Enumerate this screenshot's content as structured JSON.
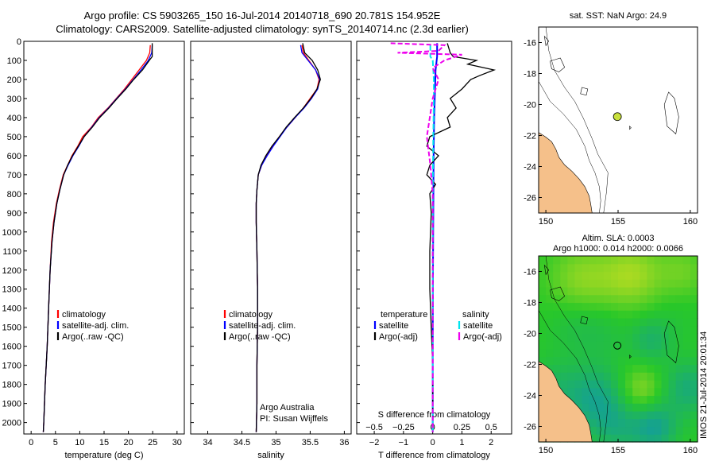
{
  "header": {
    "line1": "Argo profile: CS 5903265_150 16-Jul-2014 20140718_690 20.781S 154.952E",
    "line2": "Climatology: CARS2009. Satellite-adjusted climatology: synTS_20140714.nc (2.3d earlier)"
  },
  "colors": {
    "climatology": "#ff0000",
    "satellite": "#0000ff",
    "argo": "#000000",
    "sal_satellite": "#00e5ee",
    "sal_argo": "#ee00ee",
    "land": "#f5c08a",
    "float_marker": "#c8e03c"
  },
  "depth_axis": {
    "ticks": [
      0,
      100,
      200,
      300,
      400,
      500,
      600,
      700,
      800,
      900,
      1000,
      1100,
      1200,
      1300,
      1400,
      1500,
      1600,
      1700,
      1800,
      1900,
      2000
    ],
    "range": [
      0,
      2060
    ]
  },
  "chart_data": [
    {
      "type": "line",
      "name": "temperature",
      "xlabel": "temperature (deg C)",
      "xlim": [
        -1.5,
        31.5
      ],
      "xticks": [
        0,
        5,
        10,
        15,
        20,
        25,
        30
      ],
      "ylim": [
        2060,
        0
      ],
      "legend": [
        "climatology",
        "satellite-adj. clim.",
        "Argo(..raw -QC)"
      ],
      "series": [
        {
          "name": "climatology",
          "points": [
            [
              24.5,
              20
            ],
            [
              24.4,
              60
            ],
            [
              23.7,
              100
            ],
            [
              22.2,
              150
            ],
            [
              20.7,
              200
            ],
            [
              19.2,
              250
            ],
            [
              17.5,
              300
            ],
            [
              15.8,
              350
            ],
            [
              13.8,
              400
            ],
            [
              12.4,
              450
            ],
            [
              10.6,
              500
            ],
            [
              9.6,
              550
            ],
            [
              8.4,
              600
            ],
            [
              7.5,
              650
            ],
            [
              6.6,
              700
            ],
            [
              5.8,
              780
            ],
            [
              5.2,
              850
            ],
            [
              4.6,
              950
            ],
            [
              4.2,
              1050
            ],
            [
              3.9,
              1200
            ],
            [
              3.6,
              1400
            ],
            [
              3.3,
              1600
            ],
            [
              2.9,
              1800
            ],
            [
              2.6,
              2000
            ],
            [
              2.5,
              2050
            ]
          ]
        },
        {
          "name": "satellite-adj. clim.",
          "points": [
            [
              24.9,
              20
            ],
            [
              24.8,
              60
            ],
            [
              24.1,
              100
            ],
            [
              22.6,
              150
            ],
            [
              21.0,
              200
            ],
            [
              19.4,
              250
            ],
            [
              17.6,
              300
            ],
            [
              15.9,
              350
            ],
            [
              14.0,
              400
            ],
            [
              12.5,
              450
            ],
            [
              10.9,
              500
            ],
            [
              9.8,
              550
            ],
            [
              8.6,
              600
            ],
            [
              7.6,
              650
            ],
            [
              6.7,
              700
            ],
            [
              5.9,
              780
            ],
            [
              5.3,
              850
            ],
            [
              4.7,
              950
            ],
            [
              4.3,
              1050
            ],
            [
              3.9,
              1200
            ],
            [
              3.6,
              1400
            ],
            [
              3.3,
              1600
            ],
            [
              2.9,
              1800
            ],
            [
              2.6,
              2000
            ],
            [
              2.5,
              2050
            ]
          ]
        },
        {
          "name": "Argo(..raw -QC)",
          "points": [
            [
              24.9,
              10
            ],
            [
              24.9,
              80
            ],
            [
              24.3,
              100
            ],
            [
              22.9,
              150
            ],
            [
              21.1,
              200
            ],
            [
              19.5,
              250
            ],
            [
              17.7,
              300
            ],
            [
              16.0,
              350
            ],
            [
              14.1,
              400
            ],
            [
              12.6,
              450
            ],
            [
              10.9,
              500
            ],
            [
              9.7,
              550
            ],
            [
              8.5,
              600
            ],
            [
              7.5,
              650
            ],
            [
              6.7,
              700
            ],
            [
              5.9,
              780
            ],
            [
              5.3,
              850
            ],
            [
              4.7,
              950
            ],
            [
              4.3,
              1050
            ],
            [
              3.9,
              1200
            ],
            [
              3.6,
              1400
            ],
            [
              3.3,
              1600
            ],
            [
              2.9,
              1800
            ],
            [
              2.6,
              2000
            ],
            [
              2.5,
              2050
            ]
          ]
        }
      ]
    },
    {
      "type": "line",
      "name": "salinity",
      "xlabel": "salinity",
      "xlim": [
        33.75,
        36.1
      ],
      "xticks": [
        34,
        34.5,
        35,
        35.5,
        36
      ],
      "ylim": [
        2060,
        0
      ],
      "legend": [
        "climatology",
        "satellite-adj. clim.",
        "Argo(..raw -QC)"
      ],
      "annotation": [
        "Argo Australia",
        "PI: Susan Wijffels"
      ],
      "series": [
        {
          "name": "climatology",
          "points": [
            [
              35.38,
              20
            ],
            [
              35.4,
              60
            ],
            [
              35.48,
              100
            ],
            [
              35.58,
              150
            ],
            [
              35.63,
              200
            ],
            [
              35.6,
              250
            ],
            [
              35.5,
              300
            ],
            [
              35.4,
              350
            ],
            [
              35.28,
              400
            ],
            [
              35.16,
              450
            ],
            [
              35.05,
              500
            ],
            [
              34.95,
              550
            ],
            [
              34.86,
              600
            ],
            [
              34.79,
              650
            ],
            [
              34.74,
              700
            ],
            [
              34.72,
              780
            ],
            [
              34.71,
              850
            ],
            [
              34.71,
              950
            ],
            [
              34.72,
              1100
            ],
            [
              34.73,
              1300
            ],
            [
              34.73,
              1500
            ],
            [
              34.72,
              1700
            ],
            [
              34.72,
              1900
            ],
            [
              34.71,
              2050
            ]
          ]
        },
        {
          "name": "satellite-adj. clim.",
          "points": [
            [
              35.36,
              20
            ],
            [
              35.38,
              60
            ],
            [
              35.47,
              100
            ],
            [
              35.58,
              150
            ],
            [
              35.64,
              200
            ],
            [
              35.61,
              250
            ],
            [
              35.52,
              300
            ],
            [
              35.41,
              350
            ],
            [
              35.28,
              400
            ],
            [
              35.16,
              450
            ],
            [
              35.06,
              500
            ],
            [
              34.96,
              550
            ],
            [
              34.87,
              600
            ],
            [
              34.79,
              650
            ],
            [
              34.74,
              700
            ],
            [
              34.72,
              780
            ],
            [
              34.71,
              850
            ],
            [
              34.71,
              950
            ],
            [
              34.72,
              1100
            ],
            [
              34.73,
              1300
            ],
            [
              34.73,
              1500
            ],
            [
              34.72,
              1700
            ],
            [
              34.72,
              1900
            ],
            [
              34.71,
              2050
            ]
          ]
        },
        {
          "name": "Argo(..raw -QC)",
          "points": [
            [
              35.39,
              10
            ],
            [
              35.42,
              60
            ],
            [
              35.53,
              100
            ],
            [
              35.61,
              150
            ],
            [
              35.65,
              200
            ],
            [
              35.6,
              250
            ],
            [
              35.51,
              300
            ],
            [
              35.4,
              350
            ],
            [
              35.27,
              400
            ],
            [
              35.15,
              450
            ],
            [
              35.05,
              500
            ],
            [
              34.94,
              550
            ],
            [
              34.85,
              600
            ],
            [
              34.78,
              650
            ],
            [
              34.74,
              700
            ],
            [
              34.72,
              780
            ],
            [
              34.71,
              850
            ],
            [
              34.71,
              950
            ],
            [
              34.72,
              1100
            ],
            [
              34.73,
              1300
            ],
            [
              34.73,
              1500
            ],
            [
              34.72,
              1700
            ],
            [
              34.72,
              1900
            ],
            [
              34.71,
              2050
            ]
          ]
        }
      ]
    },
    {
      "type": "line",
      "name": "difference",
      "xlabel_top": "S difference from climatology",
      "xlabel": "T difference from climatology",
      "xlim": [
        -2.6,
        2.7
      ],
      "xticks": [
        -2,
        -1,
        0,
        1,
        2
      ],
      "xtick_labels": [
        "−2",
        "−1",
        "0",
        "1",
        "2"
      ],
      "sticks": [
        -0.5,
        -0.25,
        0,
        0.25,
        0.5
      ],
      "stick_labels": [
        "−0.5",
        "−0.25",
        "0",
        "0.25",
        "0.5"
      ],
      "s_scale": 4,
      "ylim": [
        2060,
        0
      ],
      "legend_left_title": "temperature",
      "legend_right_title": "salinity",
      "legend_left": [
        "satellite",
        "Argo(-adj)"
      ],
      "legend_right": [
        "satellite",
        "Argo(-adj)"
      ],
      "series": [
        {
          "name": "T satellite",
          "var": "T",
          "points": [
            [
              0.15,
              10
            ],
            [
              0.15,
              80
            ],
            [
              0.1,
              150
            ],
            [
              0.08,
              250
            ],
            [
              0.05,
              400
            ],
            [
              0.03,
              600
            ],
            [
              0.02,
              900
            ],
            [
              0.01,
              1200
            ],
            [
              0.0,
              1600
            ],
            [
              0.0,
              2050
            ]
          ]
        },
        {
          "name": "T Argo(-adj)",
          "var": "T",
          "points": [
            [
              0.5,
              10
            ],
            [
              0.6,
              60
            ],
            [
              0.7,
              80
            ],
            [
              1.5,
              100
            ],
            [
              1.2,
              120
            ],
            [
              2.1,
              150
            ],
            [
              1.6,
              180
            ],
            [
              1.3,
              200
            ],
            [
              1.0,
              250
            ],
            [
              0.6,
              300
            ],
            [
              0.8,
              350
            ],
            [
              0.5,
              400
            ],
            [
              0.6,
              450
            ],
            [
              -0.1,
              500
            ],
            [
              -0.2,
              550
            ],
            [
              0.2,
              600
            ],
            [
              -0.1,
              650
            ],
            [
              -0.2,
              700
            ],
            [
              0.1,
              750
            ],
            [
              -0.1,
              800
            ],
            [
              -0.05,
              900
            ],
            [
              -0.1,
              1100
            ],
            [
              -0.1,
              1300
            ],
            [
              -0.05,
              1500
            ],
            [
              0.0,
              1700
            ],
            [
              0.0,
              2050
            ]
          ]
        },
        {
          "name": "S satellite",
          "var": "S",
          "points": [
            [
              -0.02,
              20
            ],
            [
              -0.02,
              80
            ],
            [
              0.0,
              100
            ],
            [
              0.01,
              200
            ],
            [
              0.01,
              300
            ],
            [
              0.005,
              500
            ],
            [
              0.0,
              800
            ],
            [
              0.0,
              1200
            ],
            [
              0.0,
              2050
            ]
          ]
        },
        {
          "name": "S Argo(-adj)",
          "var": "S",
          "points": [
            [
              -0.36,
              10
            ],
            [
              0.1,
              20
            ],
            [
              0.05,
              50
            ],
            [
              -0.3,
              60
            ],
            [
              0.25,
              70
            ],
            [
              0.1,
              100
            ],
            [
              0.0,
              140
            ],
            [
              0.05,
              200
            ],
            [
              0.0,
              300
            ],
            [
              -0.05,
              500
            ],
            [
              -0.02,
              650
            ],
            [
              0.0,
              800
            ],
            [
              0.0,
              1000
            ],
            [
              0.0,
              2050
            ]
          ]
        }
      ]
    },
    {
      "type": "map",
      "name": "sst-map",
      "title": "sat. SST: NaN Argo: 24.9",
      "xlim": [
        149.5,
        160.5
      ],
      "ylim": [
        -27,
        -15
      ],
      "xticks": [
        150,
        155,
        160
      ],
      "yticks": [
        -16,
        -18,
        -20,
        -22,
        -24,
        -26
      ],
      "float": [
        154.952,
        -20.781
      ]
    },
    {
      "type": "heatmap",
      "name": "sla-map",
      "title": "Altim. SLA: 0.0003",
      "subtitle": "Argo h1000: 0.014 h2000: 0.0066",
      "xlim": [
        149.5,
        160.5
      ],
      "ylim": [
        -27,
        -15
      ],
      "xticks": [
        150,
        155,
        160
      ],
      "yticks": [
        -16,
        -18,
        -20,
        -22,
        -24,
        -26
      ],
      "float": [
        154.952,
        -20.781
      ],
      "blobs": [
        {
          "lon": 152.5,
          "lat": -16.5,
          "r": 1.6,
          "v": 0.45
        },
        {
          "lon": 156.0,
          "lat": -16.2,
          "r": 1.5,
          "v": 0.55
        },
        {
          "lon": 159.5,
          "lat": -16.0,
          "r": 1.2,
          "v": 0.3
        },
        {
          "lon": 152.0,
          "lat": -19.5,
          "r": 1.3,
          "v": -0.25
        },
        {
          "lon": 154.0,
          "lat": -20.0,
          "r": 1.2,
          "v": -0.2
        },
        {
          "lon": 157.3,
          "lat": -20.4,
          "r": 1.0,
          "v": -0.55
        },
        {
          "lon": 150.5,
          "lat": -23.5,
          "r": 1.3,
          "v": -0.4
        },
        {
          "lon": 153.5,
          "lat": -24.2,
          "r": 1.5,
          "v": -0.85
        },
        {
          "lon": 156.5,
          "lat": -23.8,
          "r": 1.2,
          "v": 0.55
        },
        {
          "lon": 159.8,
          "lat": -23.5,
          "r": 1.2,
          "v": -0.7
        },
        {
          "lon": 155.0,
          "lat": -26.0,
          "r": 1.2,
          "v": -0.5
        },
        {
          "lon": 157.5,
          "lat": -26.0,
          "r": 1.1,
          "v": -0.95
        },
        {
          "lon": 159.0,
          "lat": -19.0,
          "r": 1.1,
          "v": -0.1
        }
      ]
    }
  ],
  "stamp": "IMOS 21-Jul-2014 20:01:34"
}
